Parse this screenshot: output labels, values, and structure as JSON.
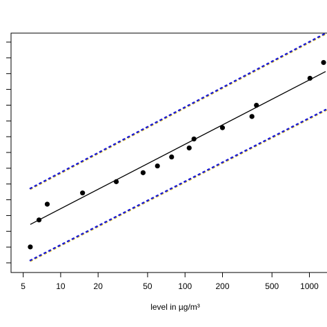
{
  "chart_data": {
    "type": "scatter",
    "title": "",
    "xlabel": "level in µg/m³",
    "ylabel": "",
    "x_scale": "log",
    "xlim": [
      4.2,
      1350
    ],
    "x_ticks": [
      5,
      10,
      20,
      50,
      100,
      200,
      500,
      1000
    ],
    "x_tick_labels": [
      "5",
      "10",
      "20",
      "50",
      "100",
      "200",
      "500",
      "1000"
    ],
    "ylim": [
      0,
      1
    ],
    "y_tick_labels_visible": false,
    "y_minor_tick_count": 15,
    "points": [
      {
        "x": 5.7,
        "y": 0.08
      },
      {
        "x": 6.7,
        "y": 0.2
      },
      {
        "x": 7.8,
        "y": 0.27
      },
      {
        "x": 15,
        "y": 0.32
      },
      {
        "x": 28,
        "y": 0.37
      },
      {
        "x": 46,
        "y": 0.41
      },
      {
        "x": 60,
        "y": 0.44
      },
      {
        "x": 78,
        "y": 0.48
      },
      {
        "x": 108,
        "y": 0.52
      },
      {
        "x": 118,
        "y": 0.56
      },
      {
        "x": 200,
        "y": 0.61
      },
      {
        "x": 345,
        "y": 0.66
      },
      {
        "x": 375,
        "y": 0.71
      },
      {
        "x": 1010,
        "y": 0.83
      },
      {
        "x": 1300,
        "y": 0.9
      }
    ],
    "fit_line": {
      "x": [
        5.7,
        1350
      ],
      "y": [
        0.18,
        0.86
      ]
    },
    "lower_band": {
      "x": [
        5.7,
        1350
      ],
      "y": [
        0.02,
        0.69
      ]
    },
    "upper_band": {
      "x": [
        5.7,
        1350
      ],
      "y": [
        0.34,
        1.03
      ]
    },
    "colors": {
      "points": "#000000",
      "fit_line": "#000000",
      "band": "#1a1ad6",
      "band_shadow": "#e0c020"
    },
    "grid": false,
    "legend": "none"
  }
}
